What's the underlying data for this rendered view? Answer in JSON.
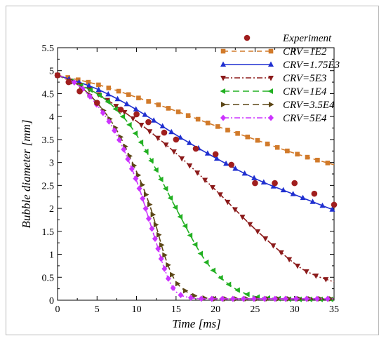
{
  "chart_data": {
    "type": "line",
    "xlabel": "Time [ms]",
    "ylabel": "Bubble diameter [mm]",
    "xlim": [
      0,
      35
    ],
    "ylim": [
      0,
      5.5
    ],
    "xticks": [
      "0",
      "5",
      "10",
      "15",
      "20",
      "25",
      "30",
      "35"
    ],
    "yticks": [
      "0",
      "0.5",
      "1",
      "1.5",
      "2",
      "2.5",
      "3",
      "3.5",
      "4",
      "4.5",
      "5",
      "5.5"
    ],
    "grid": false,
    "legend_position": "top-right",
    "experiment": {
      "name": "Experiment",
      "color": "#a01e1e",
      "marker": "circle",
      "x": [
        0,
        1.4,
        2.8,
        5,
        8,
        10,
        11.5,
        13.5,
        15,
        17.5,
        20,
        22,
        25,
        27.5,
        30,
        32.5,
        35
      ],
      "y": [
        4.9,
        4.75,
        4.55,
        4.3,
        4.15,
        4.05,
        3.88,
        3.65,
        3.5,
        3.3,
        3.18,
        2.95,
        2.55,
        2.55,
        2.55,
        2.32,
        2.08
      ]
    },
    "series": [
      {
        "name": "CRV=1E2",
        "color": "#d17a2a",
        "dash": "7,5",
        "marker": "square",
        "x": [
          0,
          5,
          10,
          15,
          20,
          25,
          30,
          35
        ],
        "y": [
          4.9,
          4.7,
          4.42,
          4.12,
          3.8,
          3.5,
          3.2,
          2.95
        ]
      },
      {
        "name": "CRV=1.75E3",
        "color": "#1f2fd0",
        "dash": "",
        "marker": "triangle-up",
        "x": [
          0,
          5,
          10,
          15,
          20,
          25,
          30,
          35
        ],
        "y": [
          4.9,
          4.6,
          4.15,
          3.6,
          3.1,
          2.65,
          2.3,
          1.96
        ]
      },
      {
        "name": "CRV=5E3",
        "color": "#8b1a1a",
        "dash": "8,3,2,3",
        "marker": "triangle-down",
        "x": [
          0,
          5,
          10,
          15,
          20,
          25,
          30,
          32.5,
          35
        ],
        "y": [
          4.9,
          4.5,
          3.9,
          3.2,
          2.4,
          1.55,
          0.8,
          0.55,
          0.4
        ]
      },
      {
        "name": "CRV=1E4",
        "color": "#22b022",
        "dash": "9,5",
        "marker": "triangle-left",
        "x": [
          0,
          5,
          8,
          10,
          12,
          15,
          18,
          20,
          22.5,
          25,
          27.5,
          30,
          32.5,
          35
        ],
        "y": [
          4.9,
          4.5,
          4.05,
          3.6,
          3.0,
          2.0,
          1.05,
          0.6,
          0.25,
          0.08,
          0.04,
          0.02,
          0.02,
          0.02
        ]
      },
      {
        "name": "CRV=3.5E4",
        "color": "#5c4616",
        "dash": "9,5",
        "marker": "triangle-right",
        "x": [
          0,
          2.5,
          5,
          7.5,
          10,
          11.5,
          12.5,
          13.5,
          14.5,
          15.5,
          17,
          18.5,
          20,
          25,
          30,
          35
        ],
        "y": [
          4.9,
          4.7,
          4.3,
          3.7,
          2.8,
          2.15,
          1.6,
          1.0,
          0.55,
          0.3,
          0.12,
          0.05,
          0.03,
          0.03,
          0.03,
          0.03
        ]
      },
      {
        "name": "CRV=5E4",
        "color": "#cc33ff",
        "dash": "8,3,2,3",
        "marker": "diamond",
        "x": [
          0,
          2.5,
          5,
          7.5,
          10,
          11.5,
          12.5,
          13.5,
          14.5,
          15.5,
          17,
          18.5,
          20,
          25,
          30,
          35
        ],
        "y": [
          4.9,
          4.7,
          4.25,
          3.6,
          2.6,
          1.8,
          1.25,
          0.7,
          0.3,
          0.12,
          0.05,
          0.03,
          0.03,
          0.03,
          0.03,
          0.03
        ]
      }
    ]
  }
}
